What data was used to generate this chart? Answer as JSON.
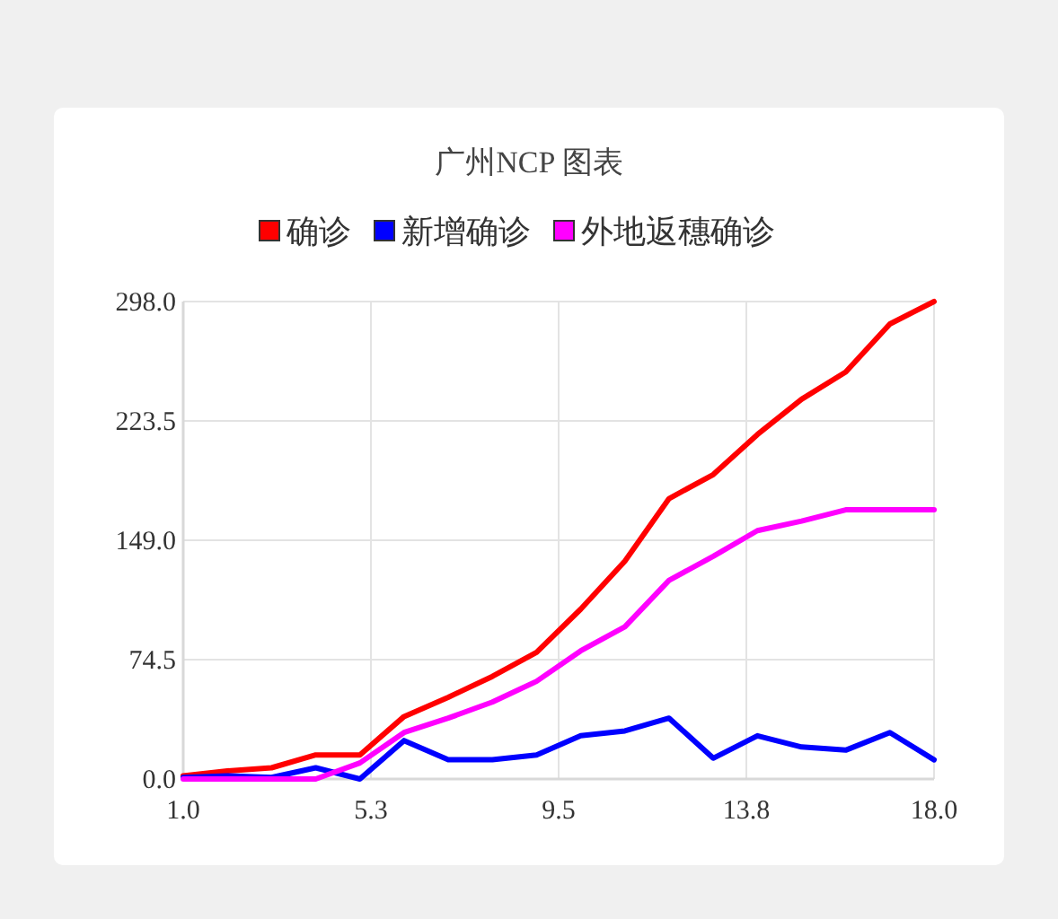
{
  "chart_data": {
    "type": "line",
    "title": "广州NCP 图表",
    "x": [
      1,
      2,
      3,
      4,
      5,
      6,
      7,
      8,
      9,
      10,
      11,
      12,
      13,
      14,
      15,
      16,
      17,
      18
    ],
    "series": [
      {
        "name": "确诊",
        "color": "#ff0000",
        "values": [
          2,
          5,
          7,
          15,
          15,
          39,
          51,
          64,
          79,
          106,
          136,
          175,
          190,
          215,
          237,
          254,
          284,
          298
        ]
      },
      {
        "name": "新增确诊",
        "color": "#0000ff",
        "values": [
          1,
          2,
          1,
          7,
          0,
          24,
          12,
          12,
          15,
          27,
          30,
          38,
          13,
          27,
          20,
          18,
          29,
          12
        ]
      },
      {
        "name": "外地返穗确诊",
        "color": "#ff00ff",
        "values": [
          0,
          0,
          0,
          0,
          10,
          29,
          38,
          48,
          61,
          80,
          95,
          124,
          139,
          155,
          161,
          168,
          168,
          168
        ]
      }
    ],
    "xlim": [
      1,
      18
    ],
    "xticks": [
      {
        "value": 1,
        "label": "1.0"
      },
      {
        "value": 5.25,
        "label": "5.3"
      },
      {
        "value": 9.5,
        "label": "9.5"
      },
      {
        "value": 13.75,
        "label": "13.8"
      },
      {
        "value": 18,
        "label": "18.0"
      }
    ],
    "ylim": [
      0,
      298
    ],
    "yticks": [
      {
        "value": 0,
        "label": "0.0"
      },
      {
        "value": 74.5,
        "label": "74.5"
      },
      {
        "value": 149,
        "label": "149.0"
      },
      {
        "value": 223.5,
        "label": "223.5"
      },
      {
        "value": 298,
        "label": "298.0"
      }
    ],
    "grid": true,
    "legend": "top",
    "marker": "none",
    "line_style": "solid"
  }
}
